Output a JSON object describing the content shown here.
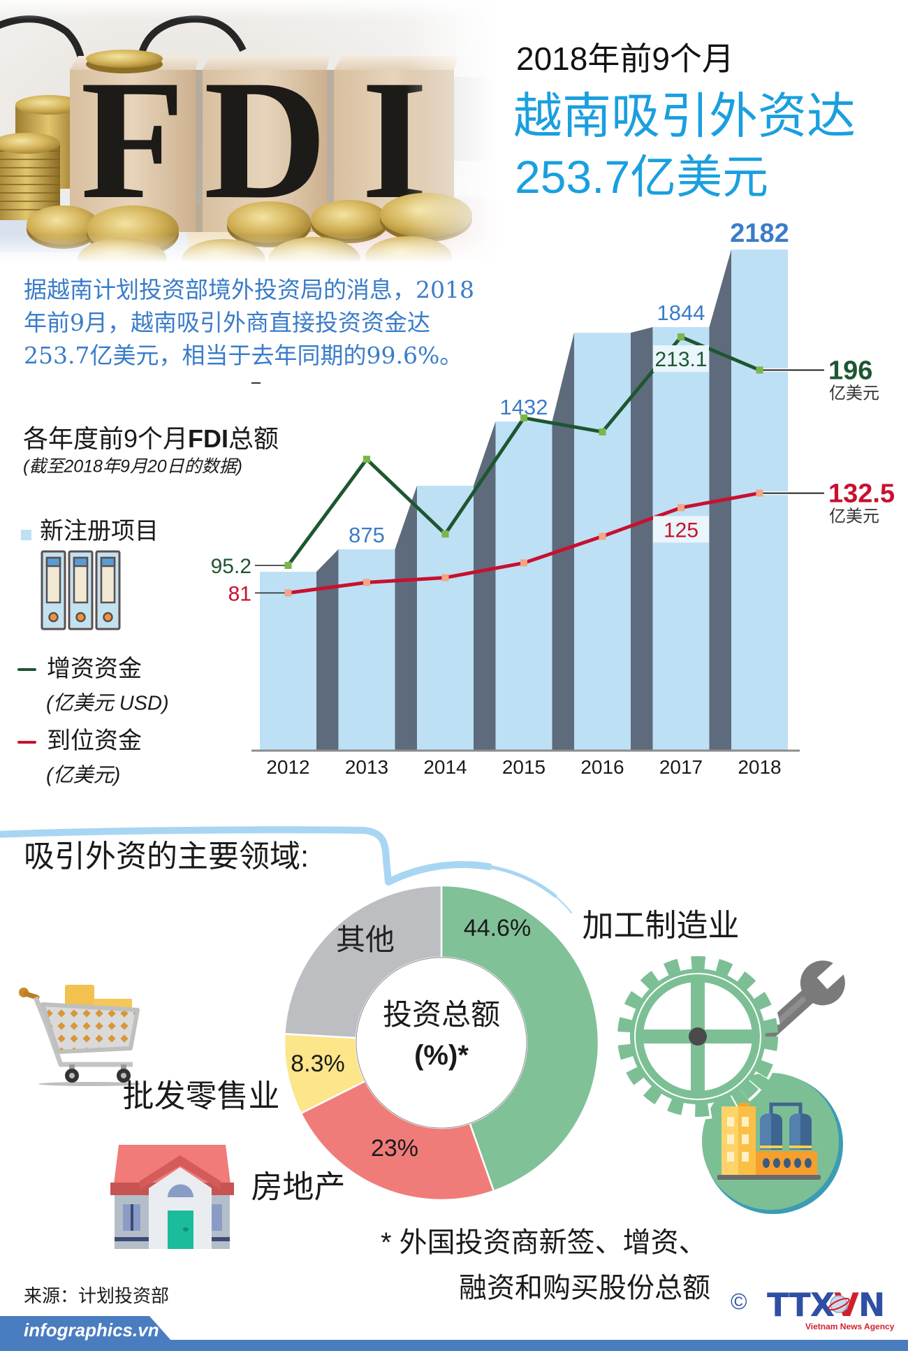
{
  "header": {
    "subtitle": "2018年前9个月",
    "title_line1": "越南吸引外资达",
    "title_line2": "253.7亿美元"
  },
  "photo": {
    "block_letters": [
      "F",
      "D",
      "I"
    ]
  },
  "intro": {
    "lines": [
      "据越南计划投资部境外投资局的消息，2018",
      "年前9月，越南吸引外商直接投资资金达",
      "253.7亿美元，相当于去年同期的99.6%。"
    ]
  },
  "fdi_section": {
    "title_prefix": "各年度前9个月",
    "title_bold": "FDI",
    "title_suffix": "总额",
    "subtitle": "(截至2018年9月20日的数据)",
    "legend": [
      {
        "label": "新注册项目",
        "icon": "binder-icon",
        "color": "#bde0f5"
      },
      {
        "label": "增资资金",
        "unit": "(亿美元 USD)",
        "color": "#1e5631"
      },
      {
        "label": "到位资金",
        "unit": "(亿美元)",
        "color": "#c8102e"
      }
    ]
  },
  "sectors_section": {
    "title": "吸引外资的主要领域:",
    "footnote_line1": "* 外国投资商新签、增资、",
    "footnote_line2": "融资和购买股份总额"
  },
  "footer": {
    "source": "来源：计划投资部",
    "site": "infographics.vn",
    "copyright_symbol": "©",
    "logo_parts": [
      "TTX",
      "V",
      "N"
    ],
    "agency_name": "Vietnam News Agency",
    "bar_color": "#4a7dc0"
  },
  "chart_data": [
    {
      "type": "bar",
      "title": "各年度前9个月FDI总额",
      "subtitle": "(截至2018年9月20日的数据)",
      "categories": [
        "2012",
        "2013",
        "2014",
        "2015",
        "2016",
        "2017",
        "2018"
      ],
      "series": [
        {
          "name": "新注册项目",
          "kind": "bar",
          "values": [
            777,
            875,
            1152,
            1432,
            1819,
            1844,
            2182
          ],
          "labels": [
            null,
            "875",
            null,
            "1432",
            null,
            "1844",
            "2182"
          ],
          "color": "#bde0f5",
          "side_color": "#5e6b7c",
          "label_color": "#3b7cc8"
        },
        {
          "name": "增资资金",
          "unit": "亿美元 USD",
          "kind": "line",
          "values": [
            95.2,
            150.0,
            111.4,
            171.3,
            164.1,
            213.1,
            196
          ],
          "labels": [
            "95.2",
            null,
            null,
            null,
            null,
            "213.1",
            "196"
          ],
          "end_unit": "亿美元",
          "color": "#1e5631",
          "marker_color": "#7ab648"
        },
        {
          "name": "到位资金",
          "unit": "亿美元",
          "kind": "line",
          "values": [
            81,
            86.4,
            88.9,
            96.5,
            110.2,
            125,
            132.5
          ],
          "labels": [
            "81",
            null,
            null,
            null,
            null,
            "125",
            "132.5"
          ],
          "end_unit": "亿美元",
          "color": "#c8102e",
          "marker_color": "#f4a582"
        }
      ],
      "xlabel": "",
      "ylabel": "",
      "grid": false,
      "y_axis_visible": false,
      "legend_position": "left"
    },
    {
      "type": "pie",
      "donut": true,
      "title": "吸引外资的主要领域:",
      "center_label": "投资总额",
      "center_sublabel": "(%)*",
      "categories": [
        "加工制造业",
        "房地产",
        "批发零售业",
        "其他"
      ],
      "values": [
        44.6,
        23,
        8.3,
        24.1
      ],
      "value_labels": [
        "44.6%",
        "23%",
        "8.3%",
        ""
      ],
      "colors": [
        "#80c197",
        "#f07c7a",
        "#fde58a",
        "#bdbec2"
      ],
      "start_angle_deg": 0,
      "direction": "clockwise",
      "footnote": "* 外国投资商新签、增资、融资和购买股份总额"
    }
  ]
}
